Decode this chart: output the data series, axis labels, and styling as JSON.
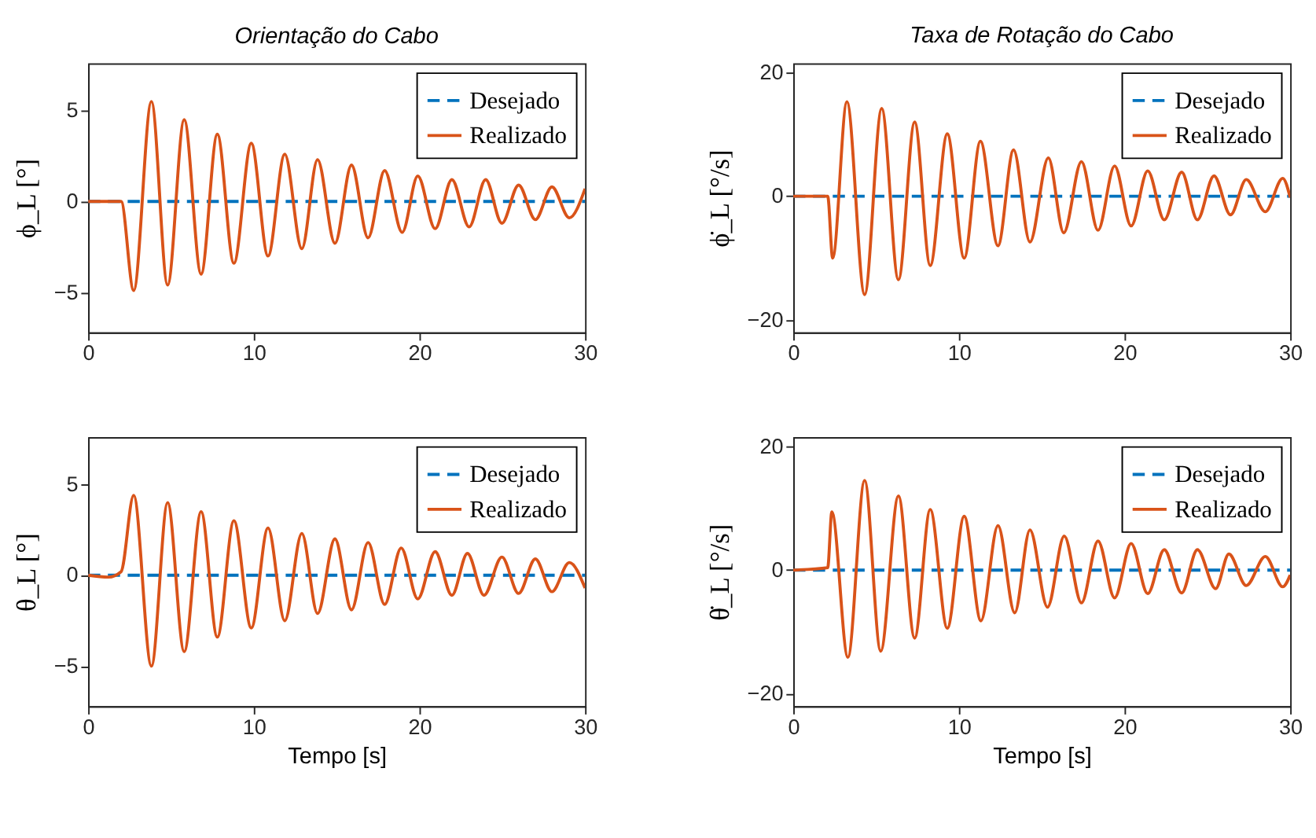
{
  "chart_data": [
    {
      "type": "line",
      "title": "Orientação do Cabo",
      "ylabel": "ϕ_L [°]",
      "xlim": [
        0,
        30
      ],
      "xticks": [
        0,
        10,
        20,
        30
      ],
      "ylim": [
        -7.2,
        7.6
      ],
      "yticks": [
        -5,
        0,
        5
      ],
      "grid": false,
      "legend": "top right",
      "series": [
        {
          "name": "Desejado",
          "color": "#0072bd",
          "line_style": "dashed",
          "x": [
            0,
            30
          ],
          "values": [
            0,
            0
          ]
        },
        {
          "name": "Realizado",
          "color": "#d95319",
          "line_style": "solid",
          "x": [
            0,
            1.99,
            2.75,
            3.82,
            4.8,
            5.8,
            6.82,
            7.8,
            8.8,
            9.85,
            10.86,
            11.87,
            12.9,
            13.85,
            14.9,
            15.9,
            16.9,
            17.9,
            18.96,
            19.9,
            20.95,
            21.96,
            23.0,
            24.0,
            24.98,
            25.99,
            27.0,
            28.0,
            29.05,
            30
          ],
          "values": [
            0,
            0,
            -4.9,
            5.5,
            -4.6,
            4.5,
            -4.0,
            3.7,
            -3.4,
            3.2,
            -3.0,
            2.6,
            -2.6,
            2.3,
            -2.3,
            2.0,
            -2.0,
            1.7,
            -1.7,
            1.4,
            -1.5,
            1.2,
            -1.4,
            1.2,
            -1.2,
            0.9,
            -1.0,
            0.8,
            -0.9,
            0.7
          ]
        }
      ]
    },
    {
      "type": "line",
      "title": "Taxa de Rotação do Cabo",
      "ylabel": "ϕ̇_L [°/s]",
      "xlim": [
        0,
        30
      ],
      "xticks": [
        0,
        10,
        20,
        30
      ],
      "ylim": [
        -22,
        21.5
      ],
      "yticks": [
        -20,
        0,
        20
      ],
      "grid": false,
      "legend": "top right",
      "series": [
        {
          "name": "Desejado",
          "color": "#0072bd",
          "line_style": "dashed",
          "x": [
            0,
            30
          ],
          "values": [
            0,
            0
          ]
        },
        {
          "name": "Realizado",
          "color": "#d95319",
          "line_style": "solid",
          "x": [
            0,
            2.08,
            2.38,
            3.24,
            4.31,
            5.34,
            6.35,
            7.33,
            8.27,
            9.3,
            10.32,
            11.3,
            12.36,
            13.3,
            14.29,
            15.4,
            16.33,
            17.4,
            18.4,
            19.4,
            20.4,
            21.4,
            22.4,
            23.45,
            24.4,
            25.4,
            26.4,
            27.35,
            28.5,
            29.55,
            30
          ],
          "values": [
            0,
            0,
            -10.0,
            15.3,
            -15.9,
            14.2,
            -13.5,
            12.0,
            -11.2,
            10.1,
            -10.0,
            8.9,
            -8.0,
            7.5,
            -7.4,
            6.2,
            -5.9,
            5.6,
            -5.5,
            4.9,
            -4.8,
            4.1,
            -3.8,
            3.9,
            -3.8,
            3.3,
            -3.0,
            2.7,
            -2.5,
            2.9,
            -0.2
          ]
        }
      ]
    },
    {
      "type": "line",
      "xlabel": "Tempo [s]",
      "ylabel": "θ_L [°]",
      "xlim": [
        0,
        30
      ],
      "xticks": [
        0,
        10,
        20,
        30
      ],
      "ylim": [
        -7.2,
        7.6
      ],
      "yticks": [
        -5,
        0,
        5
      ],
      "grid": false,
      "legend": "top right",
      "series": [
        {
          "name": "Desejado",
          "color": "#0072bd",
          "line_style": "dashed",
          "x": [
            0,
            30
          ],
          "values": [
            0,
            0
          ]
        },
        {
          "name": "Realizado",
          "color": "#d95319",
          "line_style": "solid",
          "x": [
            0,
            1.22,
            1.99,
            2.75,
            3.82,
            4.8,
            5.8,
            6.82,
            7.8,
            8.8,
            9.85,
            10.86,
            11.87,
            12.9,
            13.85,
            14.9,
            15.9,
            16.9,
            17.9,
            18.9,
            19.9,
            20.95,
            21.96,
            22.9,
            23.9,
            24.98,
            25.99,
            27.0,
            28.0,
            29.05,
            30
          ],
          "values": [
            0,
            -0.1,
            0.2,
            4.4,
            -5.0,
            4.0,
            -4.2,
            3.5,
            -3.4,
            3.0,
            -2.9,
            2.6,
            -2.5,
            2.3,
            -2.1,
            2.0,
            -1.9,
            1.8,
            -1.6,
            1.5,
            -1.3,
            1.3,
            -1.1,
            1.2,
            -1.1,
            1.0,
            -1.0,
            0.9,
            -0.9,
            0.7,
            -0.7
          ]
        }
      ]
    },
    {
      "type": "line",
      "xlabel": "Tempo [s]",
      "ylabel": "θ̇_L [°/s]",
      "xlim": [
        0,
        30
      ],
      "xticks": [
        0,
        10,
        20,
        30
      ],
      "ylim": [
        -22,
        21.5
      ],
      "yticks": [
        -20,
        0,
        20
      ],
      "grid": false,
      "legend": "top right",
      "series": [
        {
          "name": "Desejado",
          "color": "#0072bd",
          "line_style": "dashed",
          "x": [
            0,
            30
          ],
          "values": [
            0,
            0
          ]
        },
        {
          "name": "Realizado",
          "color": "#d95319",
          "line_style": "solid",
          "x": [
            0,
            2.08,
            2.33,
            3.3,
            4.31,
            5.28,
            6.35,
            7.33,
            8.27,
            9.3,
            10.32,
            11.33,
            12.36,
            13.37,
            14.29,
            15.35,
            16.36,
            17.4,
            18.4,
            19.4,
            20.4,
            21.4,
            22.4,
            23.45,
            24.4,
            25.5,
            26.3,
            27.35,
            28.5,
            29.55,
            30
          ],
          "values": [
            0,
            0.4,
            9.4,
            -14.1,
            14.5,
            -13.1,
            12.0,
            -11.0,
            9.8,
            -9.4,
            8.7,
            -8.2,
            7.2,
            -6.9,
            6.5,
            -6.0,
            5.5,
            -5.3,
            4.7,
            -4.5,
            4.3,
            -3.8,
            3.3,
            -3.7,
            3.3,
            -3.0,
            2.6,
            -2.5,
            2.2,
            -2.7,
            -0.8
          ]
        }
      ]
    }
  ]
}
